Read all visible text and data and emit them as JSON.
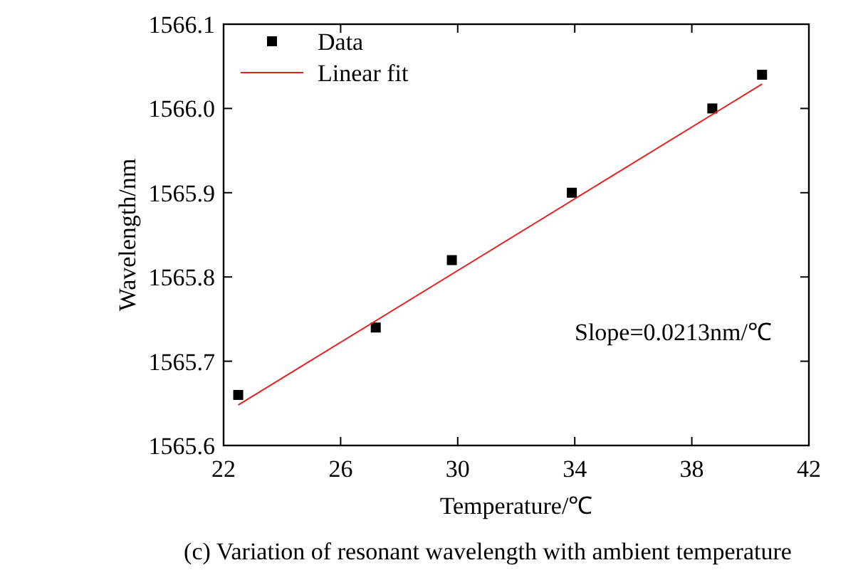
{
  "chart_data": {
    "type": "scatter",
    "xlabel": "Temperature/℃",
    "ylabel": "Wavelength/nm",
    "xlim": [
      22,
      42
    ],
    "xticks": [
      22,
      26,
      30,
      34,
      38,
      42
    ],
    "ylim": [
      1565.6,
      1566.1
    ],
    "yticks": [
      {
        "value": 1565.6,
        "label": "1565.6"
      },
      {
        "value": 1565.7,
        "label": "1565.7"
      },
      {
        "value": 1565.8,
        "label": "1565.8"
      },
      {
        "value": 1565.9,
        "label": "1565.9"
      },
      {
        "value": 1566.0,
        "label": "1566.0"
      },
      {
        "value": 1566.1,
        "label": "1566.1"
      }
    ],
    "series": [
      {
        "name": "Data",
        "color": "#000000",
        "marker": "square",
        "x": [
          22.5,
          27.2,
          29.8,
          33.9,
          38.7,
          40.4
        ],
        "values": [
          1565.66,
          1565.74,
          1565.82,
          1565.9,
          1566.0,
          1566.04
        ]
      },
      {
        "name": "Linear fit",
        "type": "line",
        "color": "#e8201e",
        "marker": "none",
        "x": [
          22.5,
          40.4
        ],
        "values": [
          1565.648,
          1566.029
        ]
      }
    ],
    "legend": "top left",
    "grid": false,
    "annotations": [
      "Slope=0.0213nm/℃",
      "(c) Variation of resonant wavelength with ambient temperature"
    ]
  }
}
